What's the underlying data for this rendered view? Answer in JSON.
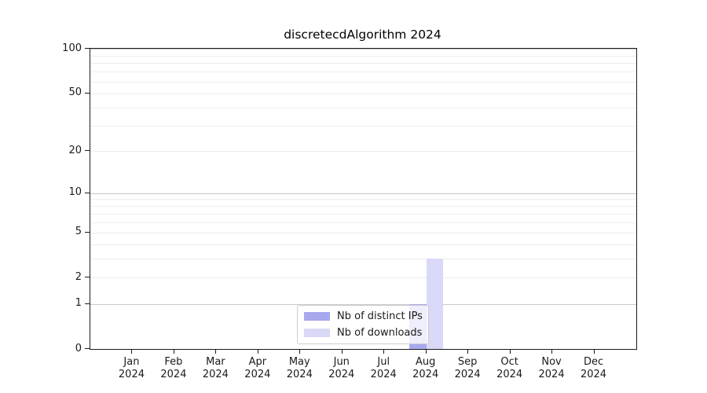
{
  "title": "discretecdAlgorithm 2024",
  "colors": {
    "distinct_ips_bar": "#a8a8ee",
    "downloads_bar": "#d9d9f7",
    "grid_major": "#c9c9c9",
    "grid_minor": "#ededed",
    "axis": "#1b1b1b",
    "legend_border": "#cccccc"
  },
  "legend": {
    "items": [
      {
        "label": "Nb of distinct IPs",
        "color": "#a8a8ee"
      },
      {
        "label": "Nb of downloads",
        "color": "#d9d9f7"
      }
    ]
  },
  "chart_data": {
    "type": "bar",
    "title": "discretecdAlgorithm 2024",
    "categories": [
      "Jan 2024",
      "Feb 2024",
      "Mar 2024",
      "Apr 2024",
      "May 2024",
      "Jun 2024",
      "Jul 2024",
      "Aug 2024",
      "Sep 2024",
      "Oct 2024",
      "Nov 2024",
      "Dec 2024"
    ],
    "series": [
      {
        "name": "Nb of distinct IPs",
        "color": "#a8a8ee",
        "values": [
          0,
          0,
          0,
          0,
          0,
          0,
          0,
          1,
          0,
          0,
          0,
          0
        ]
      },
      {
        "name": "Nb of downloads",
        "color": "#d9d9f7",
        "values": [
          0,
          0,
          0,
          0,
          0,
          0,
          0,
          3,
          0,
          0,
          0,
          0
        ]
      }
    ],
    "xlabel": "",
    "ylabel": "",
    "ylim": [
      0,
      100
    ],
    "yscale": "log10(1+x)",
    "yticks": [
      0,
      1,
      2,
      5,
      10,
      20,
      50,
      100
    ],
    "ytick_major_grid": [
      1,
      10,
      100
    ],
    "ytick_minor_grid": [
      2,
      3,
      4,
      5,
      6,
      7,
      8,
      9,
      20,
      30,
      40,
      50,
      60,
      70,
      80,
      90
    ],
    "grid": "horizontal",
    "legend_position": "lower center"
  }
}
